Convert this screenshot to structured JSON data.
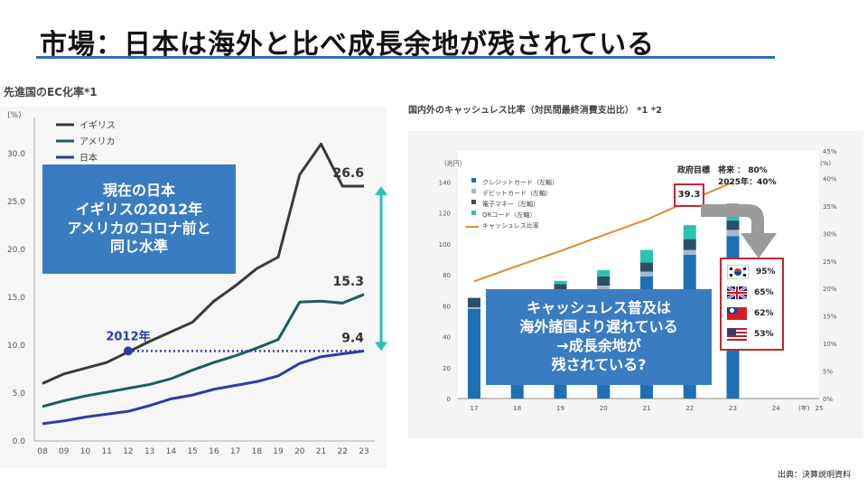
{
  "title": "市場：日本は海外と比べ成長余地が残されている",
  "source": "出典：決算説明資料",
  "left_box": [
    "現在の日本",
    "イギリスの2012年",
    "アメリカのコロナ前と",
    "同じ水準"
  ],
  "right_box": [
    "キャッシュレス普及は",
    "海外諸国より遅れている",
    "→成長余地が",
    "残されている?"
  ],
  "goal": {
    "label": "政府目標",
    "future_label": "将来 ： 80%",
    "year_label": "2025年：40%"
  },
  "flags": [
    {
      "country": "korea",
      "value": "95%"
    },
    {
      "country": "uk",
      "value": "65%"
    },
    {
      "country": "taiwan",
      "value": "62%"
    },
    {
      "country": "usa",
      "value": "53%"
    }
  ],
  "chart_data": [
    {
      "type": "line",
      "title": "先進国のEC化率*1",
      "ylabel": "(%)",
      "ylim": [
        0,
        30
      ],
      "yticks": [
        "0.0",
        "5.0",
        "10.0",
        "15.0",
        "20.0",
        "25.0",
        "30.0"
      ],
      "categories": [
        "08",
        "09",
        "10",
        "11",
        "12",
        "13",
        "14",
        "15",
        "16",
        "17",
        "18",
        "19",
        "20",
        "21",
        "22",
        "23"
      ],
      "series": [
        {
          "name": "イギリス",
          "color": "#3a3a3a",
          "values": [
            6.0,
            7.0,
            7.6,
            8.2,
            9.3,
            10.4,
            11.4,
            12.4,
            14.6,
            16.2,
            18.0,
            19.2,
            27.8,
            31.0,
            26.6,
            26.6
          ]
        },
        {
          "name": "アメリカ",
          "color": "#1f5b63",
          "values": [
            3.6,
            4.2,
            4.7,
            5.1,
            5.5,
            5.9,
            6.5,
            7.4,
            8.2,
            8.9,
            9.7,
            10.6,
            14.5,
            14.6,
            14.4,
            15.3
          ]
        },
        {
          "name": "日本",
          "color": "#2d3da6",
          "values": [
            1.8,
            2.1,
            2.5,
            2.8,
            3.1,
            3.7,
            4.4,
            4.8,
            5.4,
            5.8,
            6.2,
            6.8,
            8.1,
            8.8,
            9.1,
            9.4
          ]
        }
      ],
      "end_labels": [
        "26.6",
        "15.3",
        "9.4"
      ],
      "marker_label": "2012年"
    },
    {
      "type": "bar",
      "title": "国内外のキャッシュレス比率（対民間最終消費支出比） *1 *2",
      "ylabel_left": "(兆円)",
      "ylabel_right": "(%)",
      "xlabel": "(年)",
      "ylim": [
        0,
        160
      ],
      "ylim_right": [
        0,
        45
      ],
      "yticks_left": [
        "0",
        "20",
        "40",
        "60",
        "80",
        "100",
        "120",
        "140"
      ],
      "yticks_right": [
        "0%",
        "5%",
        "10%",
        "15%",
        "20%",
        "25%",
        "30%",
        "35%",
        "40%",
        "45%"
      ],
      "categories": [
        "17",
        "18",
        "19",
        "20",
        "21",
        "22",
        "23",
        "24",
        "25"
      ],
      "legend": [
        {
          "name": "クレジットカード（左軸）",
          "color": "#1f6fb5"
        },
        {
          "name": "デビットカード（左軸）",
          "color": "#a9b8c8"
        },
        {
          "name": "電子マネー（左軸）",
          "color": "#2c4f6b"
        },
        {
          "name": "QRコード（左軸）",
          "color": "#27c4b0"
        },
        {
          "name": "キャッシュレス比率",
          "color": "#e08a2c"
        }
      ],
      "series": [
        {
          "name": "クレジットカード（左軸）",
          "values": [
            58,
            62,
            66,
            70,
            79,
            93,
            105,
            null,
            null
          ]
        },
        {
          "name": "デビットカード（左軸）",
          "values": [
            1,
            1,
            2,
            3,
            3,
            3,
            4,
            null,
            null
          ]
        },
        {
          "name": "電子マネー（左軸）",
          "values": [
            6,
            6,
            6,
            6,
            6,
            7,
            6,
            null,
            null
          ]
        },
        {
          "name": "QRコード（左軸）",
          "values": [
            0.2,
            1,
            2,
            4,
            8,
            9,
            11,
            null,
            null
          ]
        }
      ],
      "line": {
        "name": "キャッシュレス比率",
        "values": [
          21.3,
          24.1,
          26.8,
          29.7,
          32.5,
          36.0,
          39.3,
          null,
          null
        ]
      },
      "last_label": "39.3"
    }
  ]
}
